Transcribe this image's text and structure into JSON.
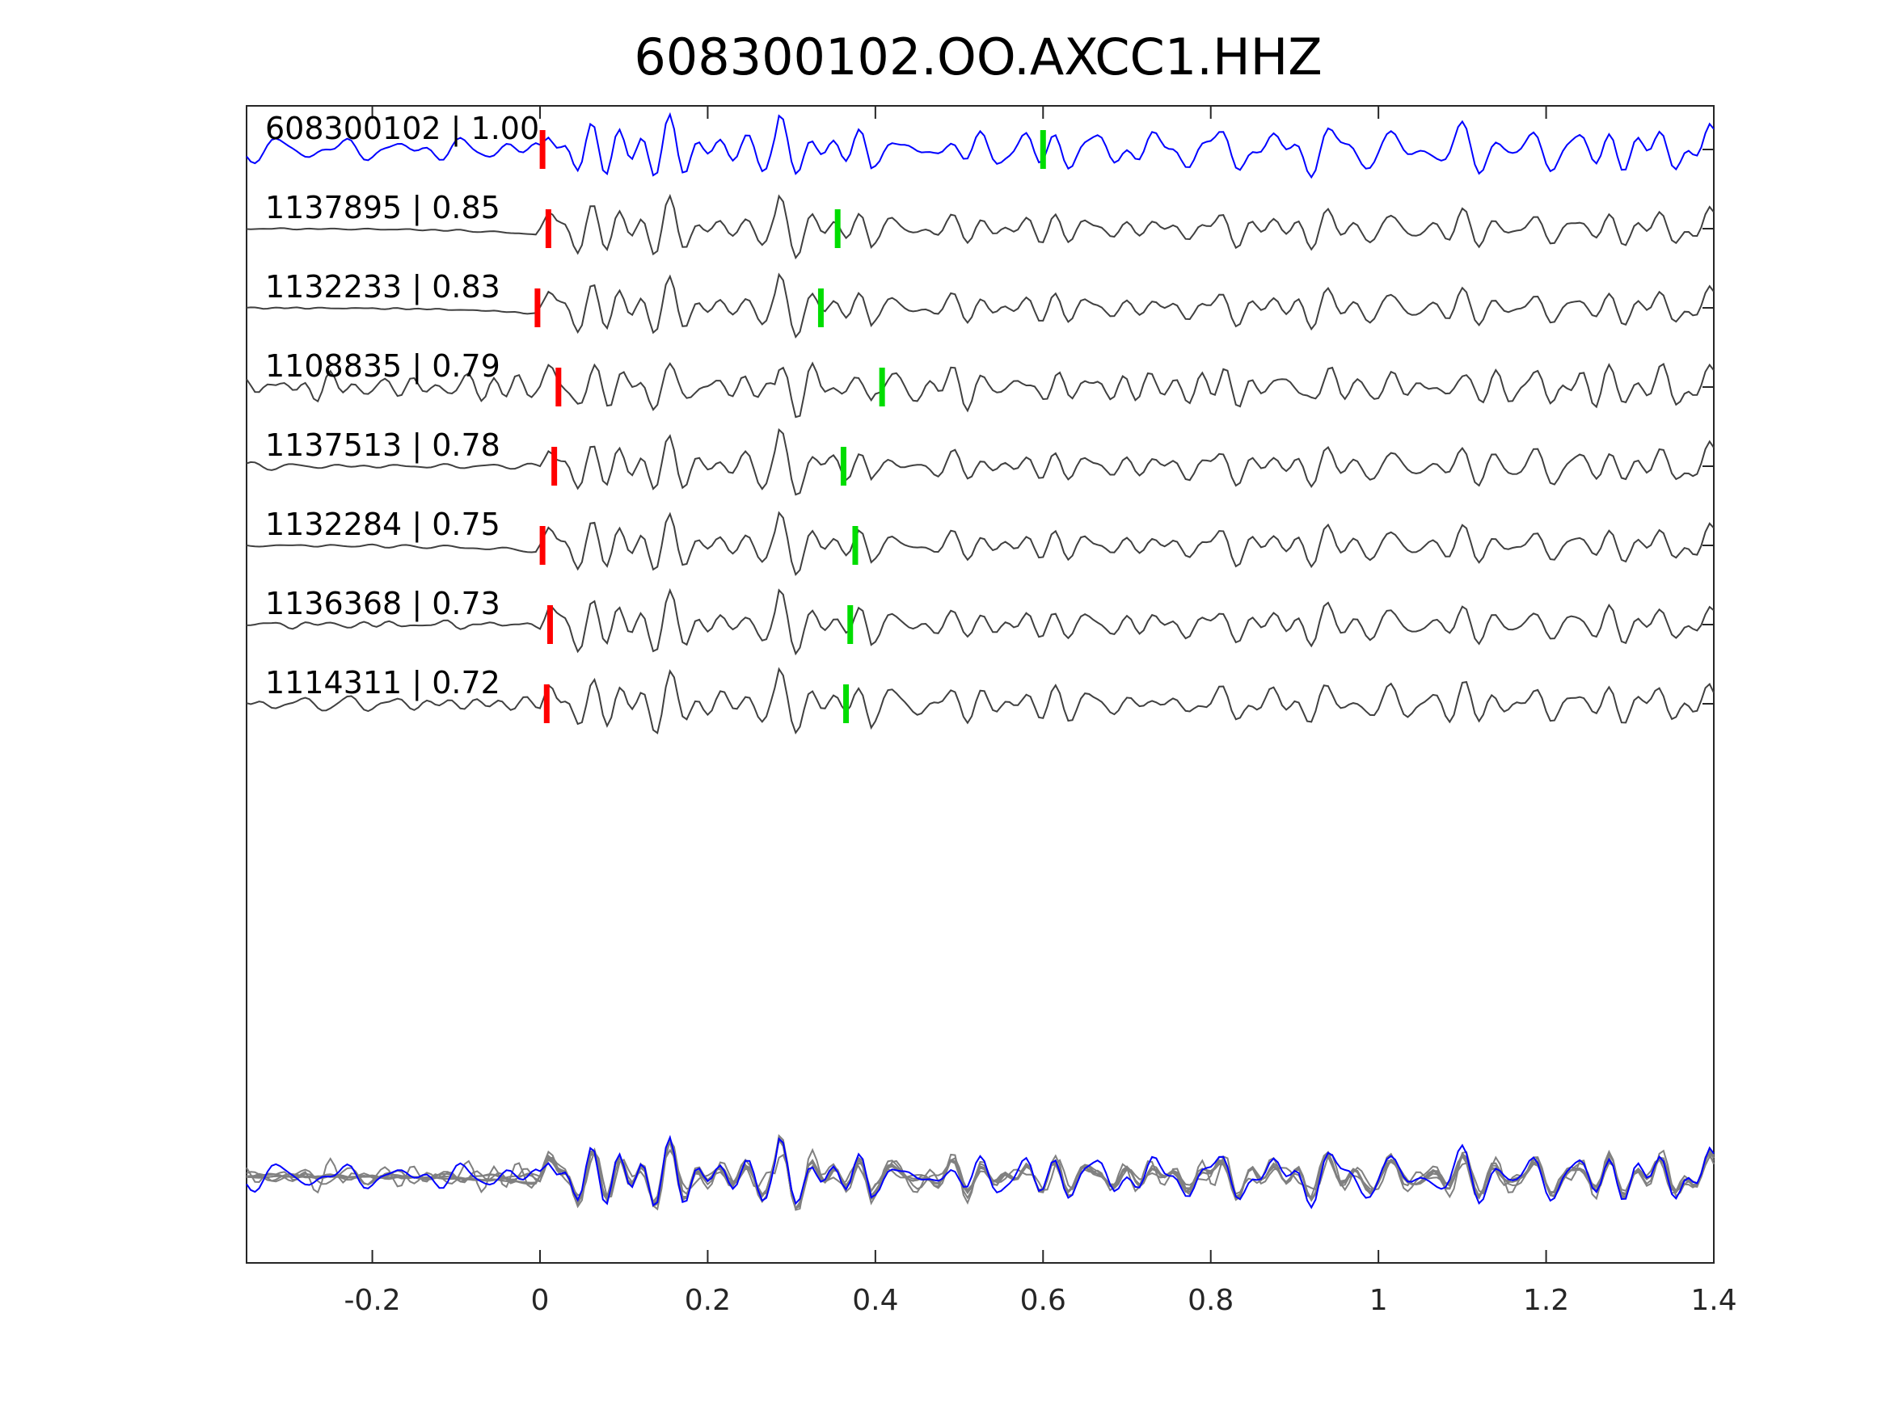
{
  "chart_data": {
    "type": "line",
    "title": "608300102.OO.AXCC1.HHZ",
    "xlabel": "",
    "ylabel": "",
    "xlim": [
      -0.35,
      1.4
    ],
    "x_ticks": [
      -0.2,
      0,
      0.2,
      0.4,
      0.6,
      0.8,
      1,
      1.2,
      1.4
    ],
    "x_tick_labels": [
      "-0.2",
      "0",
      "0.2",
      "0.4",
      "0.6",
      "0.8",
      "1",
      "1.2",
      "1.4"
    ],
    "grid": false,
    "legend": "none",
    "colors": {
      "template": "#0000ff",
      "matches": "#404040",
      "overlay": "#808080",
      "p_pick": "#ff0000",
      "s_pick": "#00dd00",
      "axes": "#262626"
    },
    "traces": [
      {
        "label": "608300102 | 1.00",
        "event_id": "608300102",
        "correlation": 1.0,
        "color": "template",
        "p_pick": 0.003,
        "s_pick": 0.6,
        "seed": 11,
        "noise": 0.55
      },
      {
        "label": "1137895 | 0.85",
        "event_id": "1137895",
        "correlation": 0.85,
        "color": "match",
        "p_pick": 0.01,
        "s_pick": 0.355,
        "seed": 23,
        "noise": 0.04
      },
      {
        "label": "1132233 | 0.83",
        "event_id": "1132233",
        "correlation": 0.83,
        "color": "match",
        "p_pick": -0.003,
        "s_pick": 0.335,
        "seed": 37,
        "noise": 0.04
      },
      {
        "label": "1108835 | 0.79",
        "event_id": "1108835",
        "correlation": 0.79,
        "color": "match",
        "p_pick": 0.022,
        "s_pick": 0.408,
        "seed": 41,
        "noise": 0.45
      },
      {
        "label": "1137513 | 0.78",
        "event_id": "1137513",
        "correlation": 0.78,
        "color": "match",
        "p_pick": 0.017,
        "s_pick": 0.362,
        "seed": 53,
        "noise": 0.35
      },
      {
        "label": "1132284 | 0.75",
        "event_id": "1132284",
        "correlation": 0.75,
        "color": "match",
        "p_pick": 0.003,
        "s_pick": 0.376,
        "seed": 67,
        "noise": 0.08
      },
      {
        "label": "1136368 | 0.73",
        "event_id": "1136368",
        "correlation": 0.73,
        "color": "match",
        "p_pick": 0.012,
        "s_pick": 0.37,
        "seed": 71,
        "noise": 0.18
      },
      {
        "label": "1114311 | 0.72",
        "event_id": "1114311",
        "correlation": 0.72,
        "color": "match",
        "p_pick": 0.008,
        "s_pick": 0.365,
        "seed": 83,
        "noise": 0.3
      }
    ],
    "overlay_panel": {
      "description_free": true,
      "traces": 8
    }
  }
}
